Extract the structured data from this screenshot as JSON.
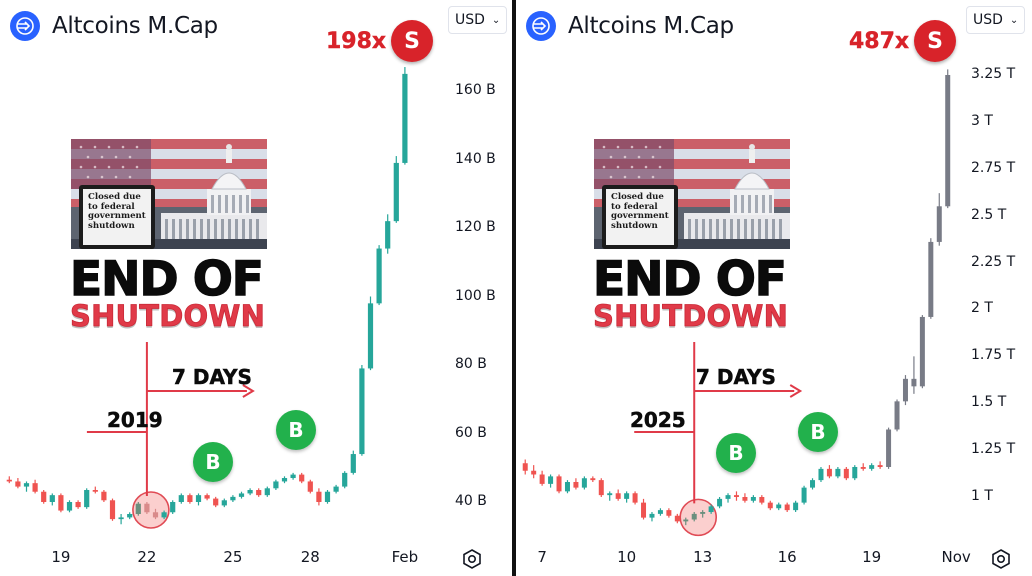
{
  "colors": {
    "up_green": "#26a69a",
    "down_red": "#ef5350",
    "neutral_up": "#787b86",
    "accent_red": "#d8232a",
    "buy_green": "#22b14c",
    "logo_blue": "#2962ff"
  },
  "panels": [
    {
      "title": "Altcoins M.Cap",
      "currency": "USD",
      "multiplier": "198x",
      "sell_label": "S",
      "buy_label": "B",
      "year": "2019",
      "days_label": "7 DAYS",
      "headline_line1": "END OF",
      "headline_line2": "SHUTDOWN",
      "sign_text": [
        "Closed due",
        "to federal",
        "government",
        "shutdown"
      ],
      "icons": [
        "logo-icon",
        "chevron-down-icon",
        "settings-icon"
      ]
    },
    {
      "title": "Altcoins M.Cap",
      "currency": "USD",
      "multiplier": "487x",
      "sell_label": "S",
      "buy_label": "B",
      "year": "2025",
      "days_label": "7 DAYS",
      "headline_line1": "END OF",
      "headline_line2": "SHUTDOWN",
      "sign_text": [
        "Closed due",
        "to federal",
        "government",
        "shutdown"
      ],
      "icons": [
        "logo-icon",
        "chevron-down-icon",
        "settings-icon"
      ]
    }
  ],
  "chart_data": [
    {
      "type": "candlestick",
      "title": "Altcoins M.Cap",
      "currency": "USD",
      "ylim": [
        30,
        180
      ],
      "y_ticks": [
        40,
        60,
        80,
        100,
        120,
        140,
        160
      ],
      "y_tick_labels": [
        "40 B",
        "60 B",
        "80 B",
        "100 B",
        "120 B",
        "140 B",
        "160 B"
      ],
      "x_tick_labels": [
        {
          "label": "19",
          "index": 6
        },
        {
          "label": "22",
          "index": 16
        },
        {
          "label": "25",
          "index": 26
        },
        {
          "label": "28",
          "index": 35
        },
        {
          "label": "Feb",
          "index": 46
        }
      ],
      "candles": [
        [
          46.5,
          47.5,
          45.5,
          46.0
        ],
        [
          46.0,
          47.0,
          44.0,
          44.5
        ],
        [
          44.5,
          46.0,
          43.0,
          45.5
        ],
        [
          45.5,
          46.5,
          42.5,
          43.0
        ],
        [
          43.0,
          43.5,
          39.5,
          40.0
        ],
        [
          40.0,
          42.5,
          39.0,
          42.0
        ],
        [
          42.0,
          42.5,
          37.0,
          37.5
        ],
        [
          37.5,
          40.5,
          37.0,
          40.0
        ],
        [
          40.0,
          40.5,
          38.0,
          38.5
        ],
        [
          38.5,
          44.0,
          38.0,
          43.5
        ],
        [
          43.5,
          44.5,
          42.5,
          43.0
        ],
        [
          43.0,
          43.5,
          40.0,
          40.5
        ],
        [
          40.5,
          41.0,
          34.5,
          35.0
        ],
        [
          35.0,
          36.5,
          33.5,
          35.5
        ],
        [
          35.5,
          37.0,
          35.0,
          36.5
        ],
        [
          36.5,
          40.0,
          36.0,
          39.5
        ],
        [
          39.5,
          40.0,
          36.5,
          37.0
        ],
        [
          37.0,
          38.0,
          35.0,
          35.5
        ],
        [
          35.5,
          37.5,
          35.0,
          37.0
        ],
        [
          37.0,
          40.5,
          36.5,
          40.0
        ],
        [
          40.0,
          42.5,
          39.5,
          42.0
        ],
        [
          42.0,
          42.5,
          39.5,
          40.0
        ],
        [
          40.0,
          42.5,
          39.0,
          42.0
        ],
        [
          42.0,
          42.5,
          40.5,
          41.0
        ],
        [
          41.0,
          41.5,
          38.5,
          39.0
        ],
        [
          39.0,
          41.0,
          38.5,
          40.5
        ],
        [
          40.5,
          42.0,
          40.0,
          41.5
        ],
        [
          41.5,
          43.0,
          41.0,
          42.5
        ],
        [
          42.5,
          44.0,
          42.0,
          43.5
        ],
        [
          43.5,
          44.0,
          41.5,
          42.0
        ],
        [
          42.0,
          44.5,
          41.5,
          44.0
        ],
        [
          44.0,
          46.5,
          43.5,
          46.0
        ],
        [
          46.0,
          47.5,
          45.5,
          47.0
        ],
        [
          47.0,
          48.5,
          46.5,
          48.0
        ],
        [
          48.0,
          48.5,
          45.5,
          46.0
        ],
        [
          46.0,
          46.5,
          42.5,
          43.0
        ],
        [
          43.0,
          44.0,
          39.0,
          40.0
        ],
        [
          40.0,
          43.5,
          39.5,
          43.0
        ],
        [
          43.0,
          45.0,
          42.5,
          44.5
        ],
        [
          44.5,
          49.0,
          44.0,
          48.5
        ],
        [
          48.5,
          55.0,
          48.0,
          54.0
        ],
        [
          54.0,
          80.0,
          53.5,
          79.0
        ],
        [
          79.0,
          100.0,
          78.5,
          98.0
        ],
        [
          98.0,
          115.0,
          97.5,
          114.0
        ],
        [
          114.0,
          124.0,
          112.5,
          122.0
        ],
        [
          122.0,
          141.0,
          121.5,
          139.0
        ],
        [
          139.0,
          167.0,
          138.5,
          165.0
        ]
      ],
      "markers": [
        {
          "label": "S",
          "index": 46,
          "multiplier": "198x"
        },
        {
          "label": "B",
          "index": 19
        },
        {
          "label": "B",
          "index": 34
        }
      ],
      "event": {
        "label": "2019",
        "index": 16,
        "note": "7 DAYS"
      }
    },
    {
      "type": "candlestick",
      "title": "Altcoins M.Cap",
      "currency": "USD",
      "ylim": [
        0.7,
        3.45
      ],
      "y_ticks": [
        1.0,
        1.25,
        1.5,
        1.75,
        2.0,
        2.25,
        2.5,
        2.75,
        3.0,
        3.25
      ],
      "y_tick_labels": [
        "1 T",
        "1.25 T",
        "1.5 T",
        "1.75 T",
        "2 T",
        "2.25 T",
        "2.5 T",
        "2.75 T",
        "3 T",
        "3.25 T"
      ],
      "x_tick_labels": [
        {
          "label": "7",
          "index": 2
        },
        {
          "label": "10",
          "index": 12
        },
        {
          "label": "13",
          "index": 21
        },
        {
          "label": "16",
          "index": 31
        },
        {
          "label": "19",
          "index": 41
        },
        {
          "label": "Nov",
          "index": 51
        }
      ],
      "candles": [
        [
          1.18,
          1.2,
          1.12,
          1.14
        ],
        [
          1.14,
          1.17,
          1.1,
          1.12
        ],
        [
          1.12,
          1.14,
          1.06,
          1.07
        ],
        [
          1.07,
          1.12,
          1.05,
          1.11
        ],
        [
          1.11,
          1.12,
          1.02,
          1.03
        ],
        [
          1.03,
          1.09,
          1.02,
          1.08
        ],
        [
          1.08,
          1.1,
          1.04,
          1.05
        ],
        [
          1.05,
          1.11,
          1.04,
          1.1
        ],
        [
          1.1,
          1.11,
          1.08,
          1.09
        ],
        [
          1.09,
          1.1,
          1.0,
          1.01
        ],
        [
          1.01,
          1.03,
          0.98,
          1.02
        ],
        [
          1.02,
          1.04,
          0.98,
          0.99
        ],
        [
          0.99,
          1.03,
          0.97,
          1.02
        ],
        [
          1.02,
          1.03,
          0.96,
          0.97
        ],
        [
          0.97,
          0.99,
          0.88,
          0.89
        ],
        [
          0.89,
          0.92,
          0.87,
          0.91
        ],
        [
          0.91,
          0.94,
          0.9,
          0.93
        ],
        [
          0.93,
          0.94,
          0.89,
          0.9
        ],
        [
          0.9,
          0.91,
          0.86,
          0.87
        ],
        [
          0.87,
          0.89,
          0.85,
          0.88
        ],
        [
          0.88,
          0.92,
          0.87,
          0.91
        ],
        [
          0.91,
          0.93,
          0.89,
          0.92
        ],
        [
          0.92,
          0.96,
          0.91,
          0.95
        ],
        [
          0.95,
          1.0,
          0.94,
          0.99
        ],
        [
          0.99,
          1.02,
          0.97,
          1.01
        ],
        [
          1.01,
          1.03,
          0.98,
          1.0
        ],
        [
          1.0,
          1.02,
          0.97,
          0.98
        ],
        [
          0.98,
          1.01,
          0.97,
          1.0
        ],
        [
          1.0,
          1.01,
          0.96,
          0.97
        ],
        [
          0.97,
          0.98,
          0.93,
          0.94
        ],
        [
          0.94,
          0.97,
          0.93,
          0.96
        ],
        [
          0.96,
          0.97,
          0.92,
          0.93
        ],
        [
          0.93,
          0.98,
          0.92,
          0.97
        ],
        [
          0.97,
          1.06,
          0.96,
          1.05
        ],
        [
          1.05,
          1.1,
          1.04,
          1.09
        ],
        [
          1.09,
          1.16,
          1.08,
          1.15
        ],
        [
          1.15,
          1.17,
          1.1,
          1.11
        ],
        [
          1.11,
          1.16,
          1.1,
          1.15
        ],
        [
          1.15,
          1.16,
          1.09,
          1.1
        ],
        [
          1.1,
          1.17,
          1.09,
          1.16
        ],
        [
          1.16,
          1.18,
          1.14,
          1.15
        ],
        [
          1.15,
          1.18,
          1.14,
          1.17
        ],
        [
          1.17,
          1.19,
          1.15,
          1.16
        ],
        [
          1.16,
          1.37,
          1.15,
          1.36
        ],
        [
          1.36,
          1.52,
          1.35,
          1.51
        ],
        [
          1.51,
          1.65,
          1.49,
          1.63
        ],
        [
          1.63,
          1.75,
          1.55,
          1.59
        ],
        [
          1.59,
          1.97,
          1.58,
          1.96
        ],
        [
          1.96,
          2.38,
          1.95,
          2.36
        ],
        [
          2.36,
          2.62,
          2.34,
          2.55
        ],
        [
          2.55,
          3.28,
          2.54,
          3.25
        ]
      ],
      "markers": [
        {
          "label": "S",
          "index": 50,
          "multiplier": "487x"
        },
        {
          "label": "B",
          "index": 26
        },
        {
          "label": "B",
          "index": 36
        }
      ],
      "event": {
        "label": "2025",
        "index": 20,
        "note": "7 DAYS"
      }
    }
  ]
}
